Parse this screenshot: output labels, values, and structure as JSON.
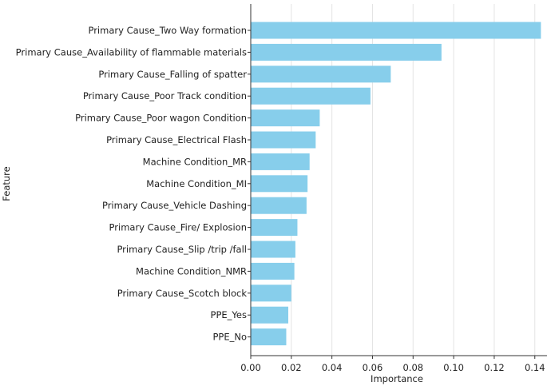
{
  "chart_data": {
    "type": "bar",
    "orientation": "horizontal",
    "title": "",
    "xlabel": "Importance",
    "ylabel": "Feature",
    "bar_color": "#87CEEB",
    "grid": "vertical",
    "xlim": [
      0,
      0.146
    ],
    "xticks": [
      "0.00",
      "0.02",
      "0.04",
      "0.06",
      "0.08",
      "0.10",
      "0.12",
      "0.14"
    ],
    "categories": [
      "Primary Cause_Two Way formation",
      "Primary Cause_Availability of flammable materials",
      "Primary Cause_Falling of spatter",
      "Primary Cause_Poor Track condition",
      "Primary Cause_Poor wagon Condition",
      "Primary Cause_Electrical Flash",
      "Machine Condition_MR",
      "Machine Condition_MI",
      "Primary Cause_Vehicle Dashing",
      "Primary Cause_Fire/ Explosion",
      "Primary Cause_Slip /trip /fall",
      "Machine Condition_NMR",
      "Primary Cause_Scotch block",
      "PPE_Yes",
      "PPE_No"
    ],
    "values": [
      0.143,
      0.094,
      0.069,
      0.059,
      0.034,
      0.032,
      0.029,
      0.028,
      0.0275,
      0.023,
      0.022,
      0.0215,
      0.02,
      0.0185,
      0.0175
    ]
  }
}
